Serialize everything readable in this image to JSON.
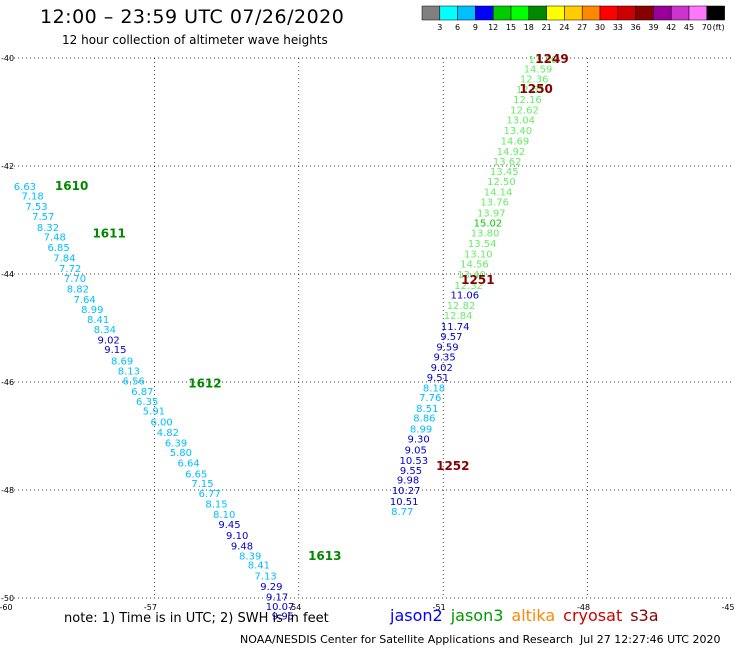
{
  "header": {
    "title": "12:00 – 23:59 UTC 07/26/2020",
    "subtitle": "12 hour collection of altimeter wave heights"
  },
  "colorbar": {
    "colors": [
      "#808080",
      "#00ffff",
      "#00bfff",
      "#0000ff",
      "#00cc00",
      "#00ff00",
      "#008800",
      "#ffff00",
      "#ffcc00",
      "#ff8800",
      "#ff0000",
      "#cc0000",
      "#880000",
      "#990099",
      "#cc33cc",
      "#ff77ff",
      "#000000"
    ],
    "labels": [
      "3",
      "6",
      "9",
      "12",
      "15",
      "18",
      "21",
      "24",
      "27",
      "30",
      "33",
      "36",
      "39",
      "42",
      "45",
      "70"
    ],
    "unit": "(ft)"
  },
  "note": "note:  1) Time is in UTC;  2) SWH is in feet",
  "missions": [
    {
      "name": "jason2",
      "color": "#0000ff"
    },
    {
      "name": "jason3",
      "color": "#009900"
    },
    {
      "name": "altika",
      "color": "#ff8800"
    },
    {
      "name": "cryosat",
      "color": "#cc0000"
    },
    {
      "name": "s3a",
      "color": "#880000"
    }
  ],
  "footer": {
    "credit": "NOAA/NESDIS Center for Satellite Applications and Research",
    "timestamp": "Jul 27 12:27:46 UTC 2020"
  },
  "chart_data": {
    "type": "scatter",
    "title": "12:00 – 23:59 UTC 07/26/2020",
    "subtitle": "12 hour collection of altimeter wave heights",
    "xlim": [
      -60,
      -45
    ],
    "ylim": [
      -50,
      -40
    ],
    "x_ticks": [
      -60,
      -57,
      -54,
      -51,
      -48,
      -45
    ],
    "y_ticks": [
      -40,
      -42,
      -44,
      -46,
      -48,
      -50
    ],
    "x_tick_labels": [
      "-60",
      "-57",
      "-54",
      "-51",
      "-48",
      "-45"
    ],
    "y_tick_labels": [
      "-40",
      "-42",
      "-44",
      "-46",
      "-48",
      "-50"
    ],
    "grid": true,
    "passes": [
      {
        "label": "1610",
        "lon": -58.72,
        "lat": -42.37,
        "color": "#008800"
      },
      {
        "label": "1611",
        "lon": -57.94,
        "lat": -43.25,
        "color": "#008800"
      },
      {
        "label": "1612",
        "lon": -55.95,
        "lat": -46.03,
        "color": "#008800"
      },
      {
        "label": "1613",
        "lon": -53.46,
        "lat": -49.22,
        "color": "#008800"
      },
      {
        "label": "1249",
        "lon": -48.74,
        "lat": -40.02,
        "color": "#880000"
      },
      {
        "label": "1250",
        "lon": -49.07,
        "lat": -40.57,
        "color": "#880000"
      },
      {
        "label": "1251",
        "lon": -50.28,
        "lat": -44.11,
        "color": "#880000"
      },
      {
        "label": "1252",
        "lon": -50.8,
        "lat": -47.56,
        "color": "#880000"
      }
    ],
    "series": [
      {
        "name": "",
        "points": [
          {
            "lon": -59.69,
            "lat": -42.37,
            "v": 6.63
          },
          {
            "lon": -59.53,
            "lat": -42.55,
            "v": 7.18
          },
          {
            "lon": -59.45,
            "lat": -42.74,
            "v": 7.53
          },
          {
            "lon": -59.31,
            "lat": -42.93,
            "v": 7.57
          },
          {
            "lon": -59.21,
            "lat": -43.13,
            "v": 8.32
          },
          {
            "lon": -59.07,
            "lat": -43.31,
            "v": 7.48
          },
          {
            "lon": -58.99,
            "lat": -43.5,
            "v": 6.85
          },
          {
            "lon": -58.87,
            "lat": -43.69,
            "v": 7.84
          },
          {
            "lon": -58.75,
            "lat": -43.89,
            "v": 7.72
          },
          {
            "lon": -58.65,
            "lat": -44.07,
            "v": 7.7
          },
          {
            "lon": -58.59,
            "lat": -44.27,
            "v": 8.82
          },
          {
            "lon": -58.45,
            "lat": -44.46,
            "v": 7.64
          },
          {
            "lon": -58.29,
            "lat": -44.65,
            "v": 8.99
          },
          {
            "lon": -58.17,
            "lat": -44.83,
            "v": 8.41
          },
          {
            "lon": -58.03,
            "lat": -45.02,
            "v": 8.34
          },
          {
            "lon": -57.95,
            "lat": -45.21,
            "v": 9.02
          },
          {
            "lon": -57.81,
            "lat": -45.39,
            "v": 9.15
          },
          {
            "lon": -57.67,
            "lat": -45.6,
            "v": 8.69
          },
          {
            "lon": -57.53,
            "lat": -45.79,
            "v": 8.13
          },
          {
            "lon": -57.43,
            "lat": -45.97,
            "v": 6.56
          },
          {
            "lon": -57.25,
            "lat": -46.17,
            "v": 6.87
          },
          {
            "lon": -57.15,
            "lat": -46.35,
            "v": 6.35
          },
          {
            "lon": -57.01,
            "lat": -46.53,
            "v": 5.91
          },
          {
            "lon": -56.85,
            "lat": -46.73,
            "v": 6.0
          },
          {
            "lon": -56.72,
            "lat": -46.93,
            "v": 4.82
          },
          {
            "lon": -56.55,
            "lat": -47.12,
            "v": 6.39
          },
          {
            "lon": -56.45,
            "lat": -47.3,
            "v": 5.8
          },
          {
            "lon": -56.29,
            "lat": -47.49,
            "v": 6.64
          },
          {
            "lon": -56.13,
            "lat": -47.69,
            "v": 6.65
          },
          {
            "lon": -56.0,
            "lat": -47.87,
            "v": 7.15
          },
          {
            "lon": -55.85,
            "lat": -48.06,
            "v": 6.77
          },
          {
            "lon": -55.71,
            "lat": -48.25,
            "v": 8.15
          },
          {
            "lon": -55.55,
            "lat": -48.44,
            "v": 8.1
          },
          {
            "lon": -55.44,
            "lat": -48.63,
            "v": 9.45
          },
          {
            "lon": -55.28,
            "lat": -48.83,
            "v": 9.1
          },
          {
            "lon": -55.18,
            "lat": -49.03,
            "v": 9.48
          },
          {
            "lon": -55.01,
            "lat": -49.21,
            "v": 8.39
          },
          {
            "lon": -54.83,
            "lat": -49.38,
            "v": 8.41
          },
          {
            "lon": -54.69,
            "lat": -49.58,
            "v": 7.13
          },
          {
            "lon": -54.57,
            "lat": -49.78,
            "v": 9.29
          },
          {
            "lon": -54.45,
            "lat": -49.97,
            "v": 9.17
          },
          {
            "lon": -54.39,
            "lat": -50.15,
            "v": 10.07
          },
          {
            "lon": -54.33,
            "lat": -50.32,
            "v": 9.95
          },
          {
            "lon": -54.21,
            "lat": -50.5,
            "v": 9.86
          }
        ]
      },
      {
        "name": "",
        "points": [
          {
            "lon": -48.93,
            "lat": -40.02,
            "v": 13.36
          },
          {
            "lon": -49.03,
            "lat": -40.19,
            "v": 14.59
          },
          {
            "lon": -49.11,
            "lat": -40.38,
            "v": 12.36
          },
          {
            "lon": -49.19,
            "lat": -40.57,
            "v": 12.65
          },
          {
            "lon": -49.25,
            "lat": -40.76,
            "v": 12.16
          },
          {
            "lon": -49.31,
            "lat": -40.95,
            "v": 12.62
          },
          {
            "lon": -49.39,
            "lat": -41.14,
            "v": 13.04
          },
          {
            "lon": -49.45,
            "lat": -41.33,
            "v": 13.4
          },
          {
            "lon": -49.51,
            "lat": -41.53,
            "v": 14.69
          },
          {
            "lon": -49.59,
            "lat": -41.72,
            "v": 14.92
          },
          {
            "lon": -49.67,
            "lat": -41.91,
            "v": 13.62
          },
          {
            "lon": -49.73,
            "lat": -42.09,
            "v": 13.45
          },
          {
            "lon": -49.79,
            "lat": -42.28,
            "v": 12.5
          },
          {
            "lon": -49.86,
            "lat": -42.47,
            "v": 14.14
          },
          {
            "lon": -49.93,
            "lat": -42.66,
            "v": 13.76
          },
          {
            "lon": -50.0,
            "lat": -42.86,
            "v": 13.97
          },
          {
            "lon": -50.07,
            "lat": -43.05,
            "v": 15.02
          },
          {
            "lon": -50.13,
            "lat": -43.23,
            "v": 13.8
          },
          {
            "lon": -50.19,
            "lat": -43.43,
            "v": 13.54
          },
          {
            "lon": -50.27,
            "lat": -43.62,
            "v": 13.1
          },
          {
            "lon": -50.35,
            "lat": -43.81,
            "v": 14.56
          },
          {
            "lon": -50.41,
            "lat": -44.0,
            "v": 13.4
          },
          {
            "lon": -50.47,
            "lat": -44.2,
            "v": 12.32
          },
          {
            "lon": -50.55,
            "lat": -44.38,
            "v": 11.06
          },
          {
            "lon": -50.63,
            "lat": -44.57,
            "v": 12.82
          },
          {
            "lon": -50.69,
            "lat": -44.76,
            "v": 12.84
          },
          {
            "lon": -50.75,
            "lat": -44.96,
            "v": 11.74
          },
          {
            "lon": -50.83,
            "lat": -45.15,
            "v": 9.57
          },
          {
            "lon": -50.91,
            "lat": -45.34,
            "v": 9.59
          },
          {
            "lon": -50.97,
            "lat": -45.53,
            "v": 9.35
          },
          {
            "lon": -51.03,
            "lat": -45.72,
            "v": 9.02
          },
          {
            "lon": -51.11,
            "lat": -45.91,
            "v": 9.51
          },
          {
            "lon": -51.19,
            "lat": -46.1,
            "v": 8.18
          },
          {
            "lon": -51.27,
            "lat": -46.28,
            "v": 7.76
          },
          {
            "lon": -51.33,
            "lat": -46.48,
            "v": 8.51
          },
          {
            "lon": -51.39,
            "lat": -46.66,
            "v": 8.86
          },
          {
            "lon": -51.46,
            "lat": -46.86,
            "v": 8.99
          },
          {
            "lon": -51.51,
            "lat": -47.05,
            "v": 9.3
          },
          {
            "lon": -51.57,
            "lat": -47.25,
            "v": 9.05
          },
          {
            "lon": -51.61,
            "lat": -47.44,
            "v": 10.53
          },
          {
            "lon": -51.67,
            "lat": -47.63,
            "v": 9.55
          },
          {
            "lon": -51.73,
            "lat": -47.81,
            "v": 9.98
          },
          {
            "lon": -51.77,
            "lat": -48.0,
            "v": 10.27
          },
          {
            "lon": -51.81,
            "lat": -48.2,
            "v": 10.51
          },
          {
            "lon": -51.85,
            "lat": -48.39,
            "v": 8.77
          }
        ]
      }
    ]
  }
}
